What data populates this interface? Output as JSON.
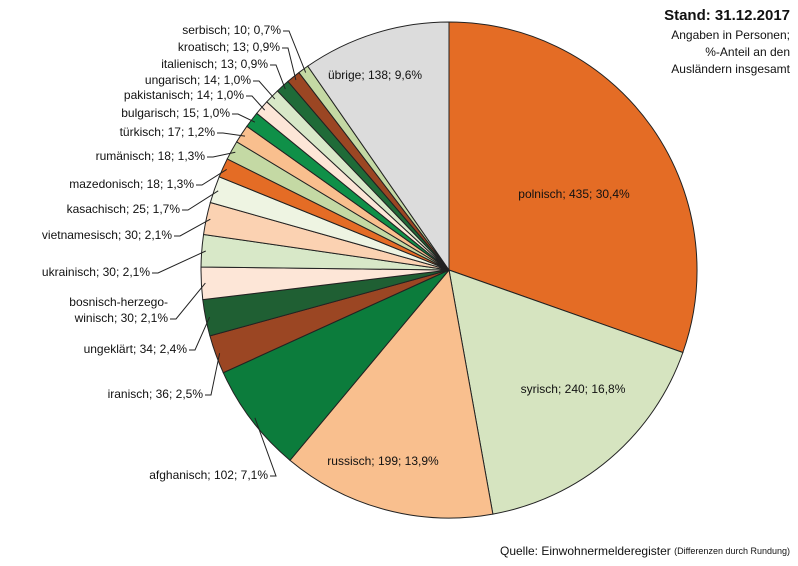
{
  "chart_data": {
    "type": "pie",
    "title": "Stand: 31.12.2017",
    "subtitle": [
      "Angaben in Personen;",
      "%-Anteil an den",
      "Ausländern insgesamt"
    ],
    "source": "Quelle: Einwohnermelderegister",
    "source_note": "(Differenzen durch Rundung)",
    "separator": "; ",
    "categories": [
      "polnisch",
      "syrisch",
      "russisch",
      "afghanisch",
      "iranisch",
      "ungeklärt",
      "bosnisch-herzego-winisch",
      "ukrainisch",
      "vietnamesisch",
      "kasachisch",
      "mazedonisch",
      "rumänisch",
      "türkisch",
      "bulgarisch",
      "pakistanisch",
      "ungarisch",
      "italienisch",
      "kroatisch",
      "serbisch",
      "übrige"
    ],
    "values": [
      435,
      240,
      199,
      102,
      36,
      34,
      30,
      30,
      30,
      25,
      18,
      18,
      17,
      15,
      14,
      14,
      13,
      13,
      10,
      138
    ],
    "percents": [
      30.4,
      16.8,
      13.9,
      7.1,
      2.5,
      2.4,
      2.1,
      2.1,
      2.1,
      1.7,
      1.3,
      1.3,
      1.2,
      1.0,
      1.0,
      1.0,
      0.9,
      0.9,
      0.7,
      9.6
    ],
    "percent_labels": [
      "30,4%",
      "16,8%",
      "13,9%",
      "7,1%",
      "2,5%",
      "2,4%",
      "2,1%",
      "2,1%",
      "2,1%",
      "1,7%",
      "1,3%",
      "1,3%",
      "1,2%",
      "1,0%",
      "1,0%",
      "1,0%",
      "0,9%",
      "0,9%",
      "0,7%",
      "9,6%"
    ],
    "colors": [
      "#e46c25",
      "#d6e4c0",
      "#f9bf8e",
      "#0c7c3c",
      "#9b4623",
      "#1f5f33",
      "#fde6d7",
      "#d8e8c8",
      "#fbd2b2",
      "#eef4e2",
      "#e46c25",
      "#c4d9a4",
      "#f9bf8e",
      "#0f9048",
      "#fde6d7",
      "#d8e8c8",
      "#1f6b38",
      "#9b4623",
      "#c4d9a4",
      "#dcdcdc"
    ]
  }
}
